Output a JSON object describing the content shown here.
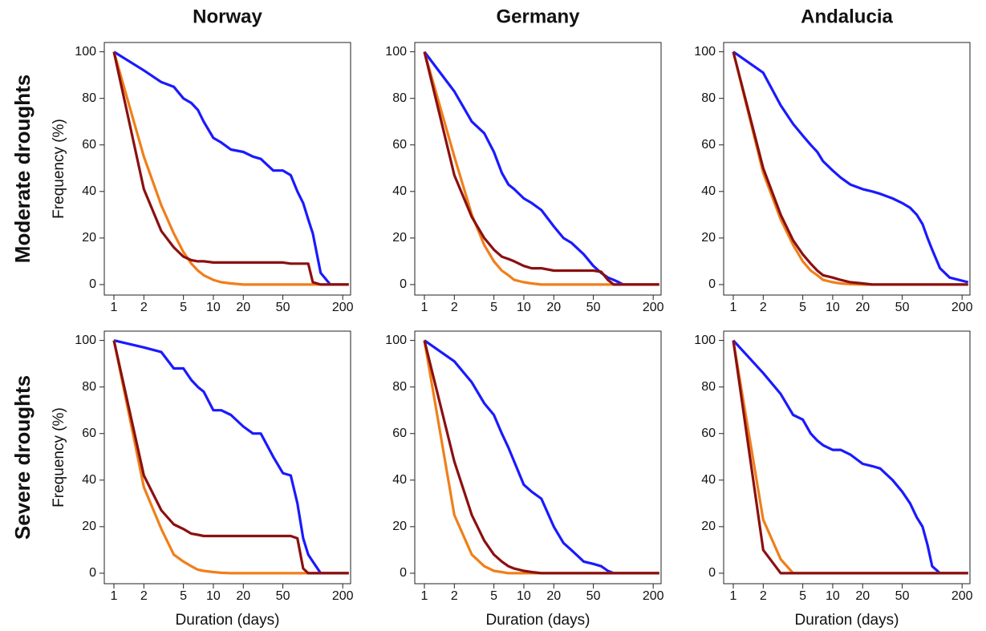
{
  "chart_data": [
    {
      "type": "line",
      "title": "Norway",
      "row_label": "Moderate droughts",
      "ylabel": "Frequency (%)",
      "xscale": "log",
      "x": [
        1,
        2,
        3,
        4,
        5,
        6,
        7,
        8,
        10,
        12,
        15,
        20,
        25,
        30,
        40,
        50,
        60,
        70,
        80,
        90,
        100,
        120,
        150,
        230
      ],
      "series": [
        {
          "color": "#1a1aff",
          "values": [
            100,
            92,
            87,
            85,
            80,
            78,
            75,
            70,
            63,
            61,
            58,
            57,
            55,
            54,
            49,
            49,
            47,
            40,
            35,
            28,
            22,
            5,
            0,
            0
          ]
        },
        {
          "color": "#f07f1a",
          "values": [
            100,
            55,
            34,
            22,
            14,
            9,
            6,
            4,
            2,
            1,
            0.5,
            0,
            0,
            0,
            0,
            0,
            0,
            0,
            0,
            0,
            0,
            0,
            0,
            0
          ]
        },
        {
          "color": "#8b1010",
          "values": [
            100,
            41,
            23,
            16,
            12,
            10.5,
            10,
            10,
            9.5,
            9.5,
            9.5,
            9.5,
            9.5,
            9.5,
            9.5,
            9.5,
            9,
            9,
            9,
            9,
            1,
            0,
            0,
            0
          ]
        }
      ],
      "xlim": [
        0.8,
        240
      ],
      "ylim": [
        -4.5,
        104
      ],
      "xticks": [
        1,
        2,
        5,
        10,
        20,
        50,
        200
      ],
      "yticks": [
        0,
        20,
        40,
        60,
        80,
        100
      ]
    },
    {
      "type": "line",
      "title": "Germany",
      "xscale": "log",
      "x": [
        1,
        2,
        3,
        4,
        5,
        6,
        7,
        8,
        10,
        12,
        15,
        20,
        25,
        30,
        40,
        50,
        60,
        70,
        80,
        90,
        100,
        120,
        150,
        230
      ],
      "series": [
        {
          "color": "#1a1aff",
          "values": [
            100,
            83,
            70,
            65,
            57,
            48,
            43,
            41,
            37,
            35,
            32,
            25,
            20,
            18,
            13,
            8,
            5,
            3,
            2,
            1,
            0,
            0,
            0,
            0
          ]
        },
        {
          "color": "#f07f1a",
          "values": [
            100,
            55,
            30,
            17,
            10,
            6,
            4,
            2,
            1,
            0.5,
            0,
            0,
            0,
            0,
            0,
            0,
            0,
            0,
            0,
            0,
            0,
            0,
            0,
            0
          ]
        },
        {
          "color": "#8b1010",
          "values": [
            100,
            47,
            29,
            20,
            15,
            12,
            11,
            10,
            8,
            7,
            7,
            6,
            6,
            6,
            6,
            6,
            5.5,
            2,
            0,
            0,
            0,
            0,
            0,
            0
          ]
        }
      ],
      "xlim": [
        0.8,
        240
      ],
      "ylim": [
        -4.5,
        104
      ],
      "xticks": [
        1,
        2,
        5,
        10,
        20,
        50,
        200
      ],
      "yticks": [
        0,
        20,
        40,
        60,
        80,
        100
      ]
    },
    {
      "type": "line",
      "title": "Andalucia",
      "xscale": "log",
      "x": [
        1,
        2,
        3,
        4,
        5,
        6,
        7,
        8,
        10,
        12,
        15,
        20,
        25,
        30,
        40,
        50,
        60,
        70,
        80,
        90,
        100,
        120,
        150,
        230
      ],
      "series": [
        {
          "color": "#1a1aff",
          "values": [
            100,
            91,
            77,
            69,
            64,
            60,
            57,
            53,
            49,
            46,
            43,
            41,
            40,
            39,
            37,
            35,
            33,
            30,
            26,
            20,
            15,
            7,
            3,
            1
          ]
        },
        {
          "color": "#f07f1a",
          "values": [
            100,
            48,
            28,
            17,
            10,
            6,
            4,
            2,
            1,
            0.5,
            0.2,
            0,
            0,
            0,
            0,
            0,
            0,
            0,
            0,
            0,
            0,
            0,
            0,
            0
          ]
        },
        {
          "color": "#8b1010",
          "values": [
            100,
            50,
            30,
            19,
            13,
            9,
            6,
            4,
            3,
            2,
            1,
            0.5,
            0,
            0,
            0,
            0,
            0,
            0,
            0,
            0,
            0,
            0,
            0,
            0
          ]
        }
      ],
      "xlim": [
        0.8,
        240
      ],
      "ylim": [
        -4.5,
        104
      ],
      "xticks": [
        1,
        2,
        5,
        10,
        20,
        50,
        200
      ],
      "yticks": [
        0,
        20,
        40,
        60,
        80,
        100
      ]
    },
    {
      "type": "line",
      "row_label": "Severe droughts",
      "ylabel": "Frequency (%)",
      "xlabel": "Duration (days)",
      "xscale": "log",
      "x": [
        1,
        2,
        3,
        4,
        5,
        6,
        7,
        8,
        10,
        12,
        15,
        20,
        25,
        30,
        40,
        50,
        60,
        70,
        80,
        90,
        100,
        120,
        150,
        230
      ],
      "series": [
        {
          "color": "#1a1aff",
          "values": [
            100,
            97,
            95,
            88,
            88,
            83,
            80,
            78,
            70,
            70,
            68,
            63,
            60,
            60,
            50,
            43,
            42,
            30,
            15,
            8,
            5,
            0,
            0,
            0
          ]
        },
        {
          "color": "#f07f1a",
          "values": [
            100,
            37,
            19,
            8,
            5,
            3,
            1.5,
            1,
            0.5,
            0.2,
            0,
            0,
            0,
            0,
            0,
            0,
            0,
            0,
            0,
            0,
            0,
            0,
            0,
            0
          ]
        },
        {
          "color": "#8b1010",
          "values": [
            100,
            42,
            27,
            21,
            19,
            17,
            16.5,
            16,
            16,
            16,
            16,
            16,
            16,
            16,
            16,
            16,
            16,
            15,
            2,
            0,
            0,
            0,
            0,
            0
          ]
        }
      ],
      "xlim": [
        0.8,
        240
      ],
      "ylim": [
        -4.5,
        104
      ],
      "xticks": [
        1,
        2,
        5,
        10,
        20,
        50,
        200
      ],
      "yticks": [
        0,
        20,
        40,
        60,
        80,
        100
      ]
    },
    {
      "type": "line",
      "xlabel": "Duration (days)",
      "xscale": "log",
      "x": [
        1,
        2,
        3,
        4,
        5,
        6,
        7,
        8,
        10,
        12,
        15,
        20,
        25,
        30,
        40,
        50,
        60,
        70,
        80,
        90,
        100,
        120,
        150,
        230
      ],
      "series": [
        {
          "color": "#1a1aff",
          "values": [
            100,
            91,
            82,
            73,
            68,
            60,
            54,
            48,
            38,
            35,
            32,
            20,
            13,
            10,
            5,
            4,
            3,
            1,
            0,
            0,
            0,
            0,
            0,
            0
          ]
        },
        {
          "color": "#f07f1a",
          "values": [
            100,
            25,
            8,
            3,
            1,
            0.5,
            0,
            0,
            0,
            0,
            0,
            0,
            0,
            0,
            0,
            0,
            0,
            0,
            0,
            0,
            0,
            0,
            0,
            0
          ]
        },
        {
          "color": "#8b1010",
          "values": [
            100,
            48,
            25,
            14,
            8,
            5,
            3,
            2,
            1,
            0.5,
            0,
            0,
            0,
            0,
            0,
            0,
            0,
            0,
            0,
            0,
            0,
            0,
            0,
            0
          ]
        }
      ],
      "xlim": [
        0.8,
        240
      ],
      "ylim": [
        -4.5,
        104
      ],
      "xticks": [
        1,
        2,
        5,
        10,
        20,
        50,
        200
      ],
      "yticks": [
        0,
        20,
        40,
        60,
        80,
        100
      ]
    },
    {
      "type": "line",
      "xlabel": "Duration (days)",
      "xscale": "log",
      "x": [
        1,
        2,
        3,
        4,
        5,
        6,
        7,
        8,
        10,
        12,
        15,
        20,
        25,
        30,
        40,
        50,
        60,
        70,
        80,
        90,
        100,
        120,
        150,
        230
      ],
      "series": [
        {
          "color": "#1a1aff",
          "values": [
            100,
            86,
            77,
            68,
            66,
            60,
            57,
            55,
            53,
            53,
            51,
            47,
            46,
            45,
            40,
            35,
            30,
            24,
            20,
            12,
            3,
            0,
            0,
            0
          ]
        },
        {
          "color": "#f07f1a",
          "values": [
            100,
            23,
            6,
            0,
            0,
            0,
            0,
            0,
            0,
            0,
            0,
            0,
            0,
            0,
            0,
            0,
            0,
            0,
            0,
            0,
            0,
            0,
            0,
            0
          ]
        },
        {
          "color": "#8b1010",
          "values": [
            100,
            10,
            0,
            0,
            0,
            0,
            0,
            0,
            0,
            0,
            0,
            0,
            0,
            0,
            0,
            0,
            0,
            0,
            0,
            0,
            0,
            0,
            0,
            0
          ]
        }
      ],
      "xlim": [
        0.8,
        240
      ],
      "ylim": [
        -4.5,
        104
      ],
      "xticks": [
        1,
        2,
        5,
        10,
        20,
        50,
        200
      ],
      "yticks": [
        0,
        20,
        40,
        60,
        80,
        100
      ]
    }
  ]
}
